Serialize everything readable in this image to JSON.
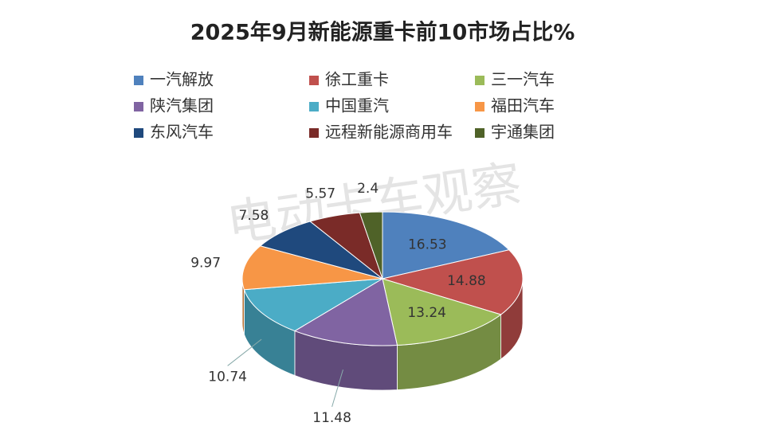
{
  "chart_data": {
    "type": "pie",
    "title": "2025年9月新能源重卡前10市场占比%",
    "watermark": "电动卡车观察",
    "categories": [
      "一汽解放",
      "徐工重卡",
      "三一汽车",
      "陕汽集团",
      "中国重汽",
      "福田汽车",
      "东风汽车",
      "远程新能源商用车",
      "宇通集团"
    ],
    "values": [
      16.53,
      14.88,
      13.24,
      11.48,
      10.74,
      9.97,
      7.58,
      5.57,
      2.4
    ],
    "colors": [
      "#4f81bd",
      "#c0504d",
      "#9bbb59",
      "#8064a2",
      "#4bacc6",
      "#f79646",
      "#1f497d",
      "#7a2b28",
      "#4f6228"
    ],
    "legend": "top"
  }
}
